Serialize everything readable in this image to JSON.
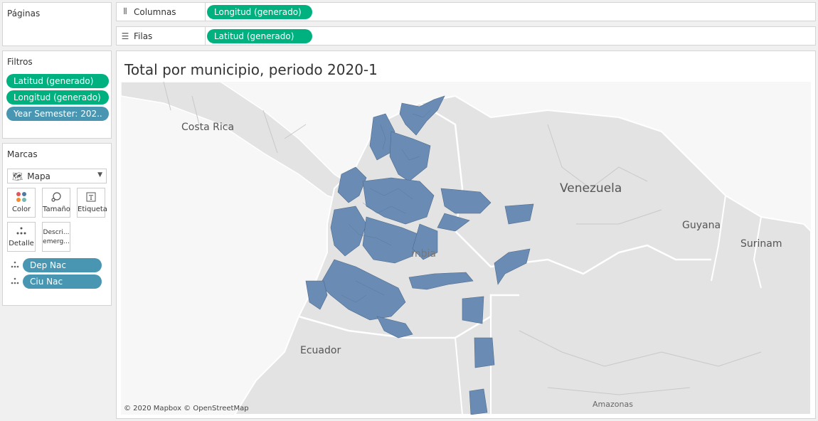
{
  "sidebar": {
    "pages": {
      "title": "Páginas"
    },
    "filters": {
      "title": "Filtros",
      "pills": [
        {
          "label": "Latitud (generado)",
          "color": "#00b180"
        },
        {
          "label": "Longitud (generado)",
          "color": "#00b180"
        },
        {
          "label": "Year Semester: 202..",
          "color": "#4996b2"
        }
      ]
    },
    "marks": {
      "title": "Marcas",
      "type_label": "Mapa",
      "buttons": [
        {
          "label": "Color",
          "icon": "color-dots-icon"
        },
        {
          "label": "Tamaño",
          "icon": "size-icon"
        },
        {
          "label": "Etiqueta",
          "icon": "label-icon"
        },
        {
          "label": "Detalle",
          "icon": "detail-icon"
        },
        {
          "label": "Descri... emerg...",
          "icon": "tooltip-icon"
        }
      ],
      "fields": [
        {
          "label": "Dep Nac",
          "icon": "detail-icon"
        },
        {
          "label": "Ciu Nac",
          "icon": "detail-icon"
        }
      ]
    }
  },
  "shelves": {
    "columns": {
      "label": "Columnas",
      "pill": "Longitud (generado)"
    },
    "rows": {
      "label": "Filas",
      "pill": "Latitud (generado)"
    }
  },
  "viz": {
    "title": "Total por municipio, periodo 2020-1",
    "attribution": "© 2020 Mapbox © OpenStreetMap",
    "map_labels": [
      "Costa Rica",
      "Venezuela",
      "Guyana",
      "Surinam",
      "Ecuador",
      "Amazonas",
      "mbia"
    ],
    "region_fill": "#6a8cb4"
  }
}
